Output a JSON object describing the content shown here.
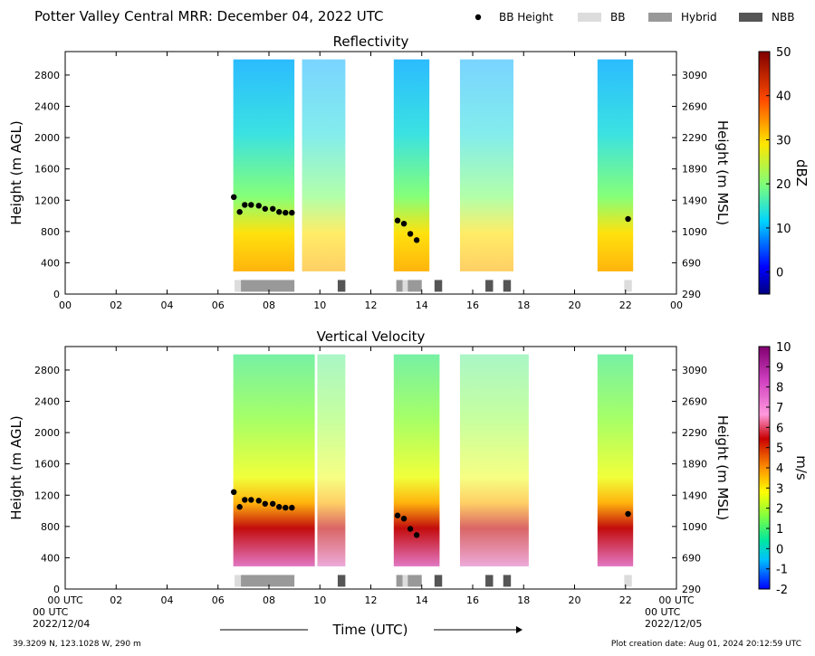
{
  "figure": {
    "title": "Potter Valley Central MRR:  December 04, 2022 UTC",
    "legend": [
      {
        "label": "BB Height",
        "symbol": "dot",
        "color": "#000000"
      },
      {
        "label": "BB",
        "symbol": "rect",
        "color": "#dcdcdc"
      },
      {
        "label": "Hybrid",
        "symbol": "rect",
        "color": "#999999"
      },
      {
        "label": "NBB",
        "symbol": "rect",
        "color": "#555555"
      }
    ],
    "footer_left": "39.3209 N, 123.1028 W, 290 m",
    "footer_right": "Plot creation date: Aug 01, 2024 20:12:59 UTC",
    "xlabel": "Time (UTC)",
    "xstart_label": "00 UTC",
    "xstart_date": "2022/12/04",
    "xend_label": "00 UTC",
    "xend_date": "2022/12/05"
  },
  "chart_data": [
    {
      "type": "heatmap",
      "title": "Reflectivity",
      "xlabel": "Time (UTC)",
      "ylabel": "Height (m AGL)",
      "y2label": "Height (m MSL)",
      "xlim": [
        0,
        24
      ],
      "ylim": [
        0,
        3100
      ],
      "xticks": [
        "00",
        "02",
        "04",
        "06",
        "08",
        "10",
        "12",
        "14",
        "16",
        "18",
        "20",
        "22",
        "00"
      ],
      "yticks": [
        0,
        400,
        800,
        1200,
        1600,
        2000,
        2400,
        2800
      ],
      "y2ticks": [
        290,
        690,
        1090,
        1490,
        1890,
        2290,
        2690,
        3090
      ],
      "colorbar": {
        "label": "dBZ",
        "range": [
          -5,
          50
        ],
        "ticks": [
          0,
          10,
          20,
          30,
          40,
          50
        ]
      },
      "echo_periods_utc": [
        [
          6.6,
          9.0
        ],
        [
          9.3,
          11.0
        ],
        [
          12.9,
          14.3
        ],
        [
          15.5,
          17.6
        ],
        [
          20.9,
          22.3
        ]
      ],
      "bb_height": {
        "x": [
          6.62,
          6.85,
          7.05,
          7.3,
          7.6,
          7.85,
          8.15,
          8.4,
          8.65,
          8.9,
          13.05,
          13.3,
          13.55,
          13.8,
          22.1
        ],
        "y": [
          1240,
          1050,
          1140,
          1140,
          1130,
          1090,
          1090,
          1050,
          1040,
          1040,
          940,
          900,
          770,
          690,
          960
        ]
      },
      "bands": [
        {
          "type": "BB",
          "start": 6.65,
          "end": 6.9
        },
        {
          "type": "Hybrid",
          "start": 6.9,
          "end": 9.0
        },
        {
          "type": "NBB",
          "start": 10.7,
          "end": 11.0
        },
        {
          "type": "Hybrid",
          "start": 13.0,
          "end": 13.25
        },
        {
          "type": "BB",
          "start": 13.25,
          "end": 13.45
        },
        {
          "type": "Hybrid",
          "start": 13.45,
          "end": 14.0
        },
        {
          "type": "NBB",
          "start": 14.5,
          "end": 14.8
        },
        {
          "type": "NBB",
          "start": 16.5,
          "end": 16.8
        },
        {
          "type": "NBB",
          "start": 17.2,
          "end": 17.5
        },
        {
          "type": "BB",
          "start": 21.95,
          "end": 22.25
        }
      ]
    },
    {
      "type": "heatmap",
      "title": "Vertical Velocity",
      "xlabel": "Time (UTC)",
      "ylabel": "Height (m AGL)",
      "y2label": "Height (m MSL)",
      "xlim": [
        0,
        24
      ],
      "ylim": [
        0,
        3100
      ],
      "xticks": [
        "00 UTC",
        "02",
        "04",
        "06",
        "08",
        "10",
        "12",
        "14",
        "16",
        "18",
        "20",
        "22",
        "00 UTC"
      ],
      "yticks": [
        0,
        400,
        800,
        1200,
        1600,
        2000,
        2400,
        2800
      ],
      "y2ticks": [
        290,
        690,
        1090,
        1490,
        1890,
        2290,
        2690,
        3090
      ],
      "colorbar": {
        "label": "m/s",
        "range": [
          -2,
          10
        ],
        "ticks": [
          -2,
          -1,
          0,
          1,
          2,
          3,
          4,
          5,
          6,
          7,
          8,
          9,
          10
        ]
      },
      "echo_periods_utc": [
        [
          6.6,
          9.8
        ],
        [
          9.9,
          11.0
        ],
        [
          12.9,
          14.7
        ],
        [
          15.5,
          18.2
        ],
        [
          20.9,
          22.3
        ]
      ],
      "bb_height": {
        "x": [
          6.62,
          6.85,
          7.05,
          7.3,
          7.6,
          7.85,
          8.15,
          8.4,
          8.65,
          8.9,
          13.05,
          13.3,
          13.55,
          13.8,
          22.1
        ],
        "y": [
          1240,
          1050,
          1140,
          1140,
          1130,
          1090,
          1090,
          1050,
          1040,
          1040,
          940,
          900,
          770,
          690,
          960
        ]
      },
      "bands": [
        {
          "type": "BB",
          "start": 6.65,
          "end": 6.9
        },
        {
          "type": "Hybrid",
          "start": 6.9,
          "end": 9.0
        },
        {
          "type": "NBB",
          "start": 10.7,
          "end": 11.0
        },
        {
          "type": "Hybrid",
          "start": 13.0,
          "end": 13.25
        },
        {
          "type": "BB",
          "start": 13.25,
          "end": 13.45
        },
        {
          "type": "Hybrid",
          "start": 13.45,
          "end": 14.0
        },
        {
          "type": "NBB",
          "start": 14.5,
          "end": 14.8
        },
        {
          "type": "NBB",
          "start": 16.5,
          "end": 16.8
        },
        {
          "type": "NBB",
          "start": 17.2,
          "end": 17.5
        },
        {
          "type": "BB",
          "start": 21.95,
          "end": 22.25
        }
      ]
    }
  ]
}
